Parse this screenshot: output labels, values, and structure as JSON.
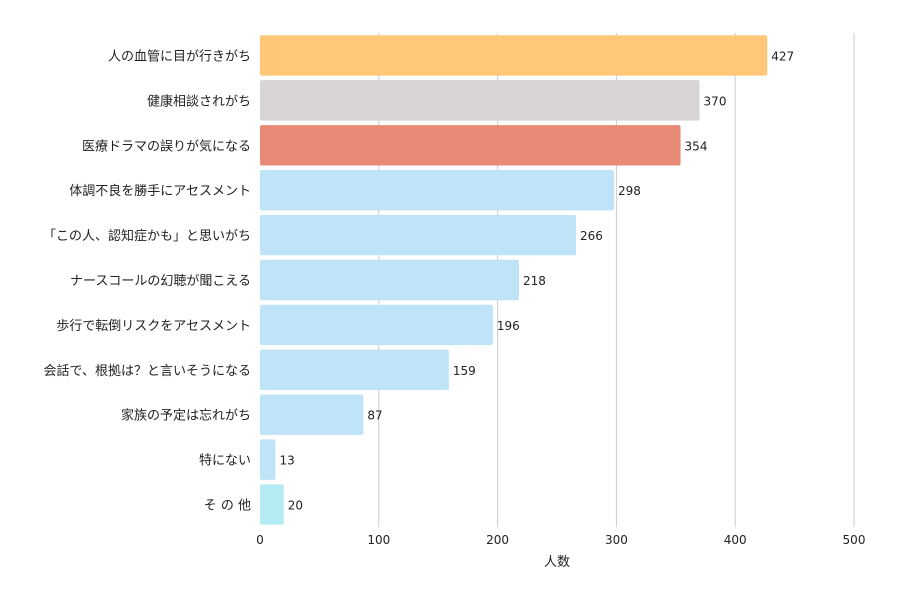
{
  "chart_data": {
    "type": "bar",
    "orientation": "horizontal",
    "categories": [
      "人の血管に目が行きがち",
      "健康相談されがち",
      "医療ドラマの誤りが気になる",
      "体調不良を勝手にアセスメント",
      "「この人、認知症かも」と思いがち",
      "ナースコールの幻聴が聞こえる",
      "歩行で転倒リスクをアセスメント",
      "会話で、根拠は？と言いそうになる",
      "家族の予定は忘れがち",
      "特にない",
      "そ の 他"
    ],
    "values": [
      427,
      370,
      354,
      298,
      266,
      218,
      196,
      159,
      87,
      13,
      20
    ],
    "colors": [
      "#FFC878",
      "#DAD5D5",
      "#E68A75",
      "#C0E4F7",
      "#C0E4F7",
      "#C0E4F7",
      "#C0E4F7",
      "#C0E4F7",
      "#C0E4F7",
      "#C0E4F7",
      "#B5EBF2"
    ],
    "xlabel": "人数",
    "ylabel": "",
    "title": "",
    "xlim": [
      0,
      500
    ],
    "xticks": [
      0,
      100,
      200,
      300,
      400,
      500
    ],
    "grid": "vertical",
    "legend": "none"
  }
}
